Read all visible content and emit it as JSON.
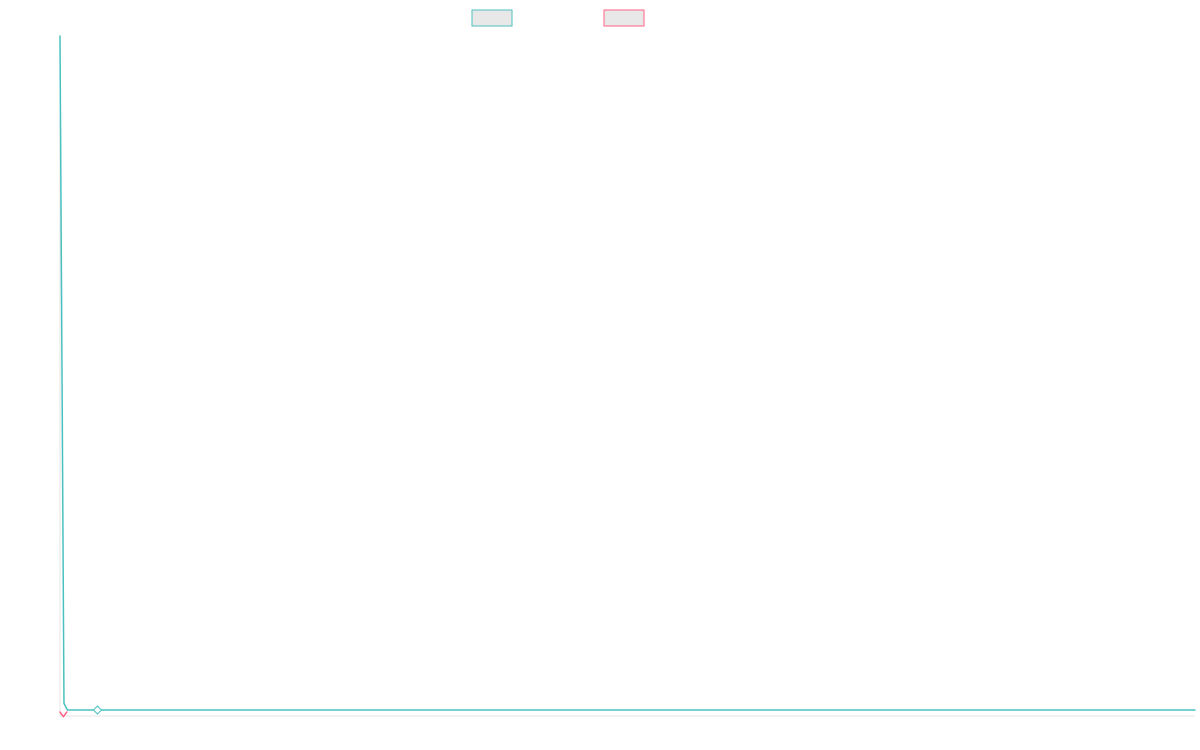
{
  "colors": {
    "background": "#ffffff",
    "axis": "#e6e6e6"
  },
  "chart_data": {
    "type": "line",
    "title": "",
    "xlabel": "",
    "ylabel": "",
    "grid": false,
    "legend": {
      "placement": "top-center",
      "labels_visible": false
    },
    "x_visible_fraction_of_axis": [
      0,
      1
    ],
    "y_visible_fraction_of_axis": [
      0,
      1
    ],
    "series": [
      {
        "color": "#4bc0c0",
        "fill": "#e8e8e8",
        "marker": "diamond",
        "points": [
          [
            0.0,
            1.0
          ],
          [
            0.0035,
            0.01
          ],
          [
            0.0065,
            0.0
          ],
          [
            0.033,
            0.0
          ],
          [
            1.0,
            0.0
          ]
        ],
        "marker_points": [
          [
            0.033,
            0.0
          ]
        ]
      },
      {
        "color": "#ff6384",
        "fill": "#e8e8e8",
        "marker": "chevron",
        "points": [
          [
            0.0,
            -0.003
          ],
          [
            0.003,
            -0.01
          ],
          [
            0.006,
            -0.003
          ]
        ]
      }
    ]
  }
}
